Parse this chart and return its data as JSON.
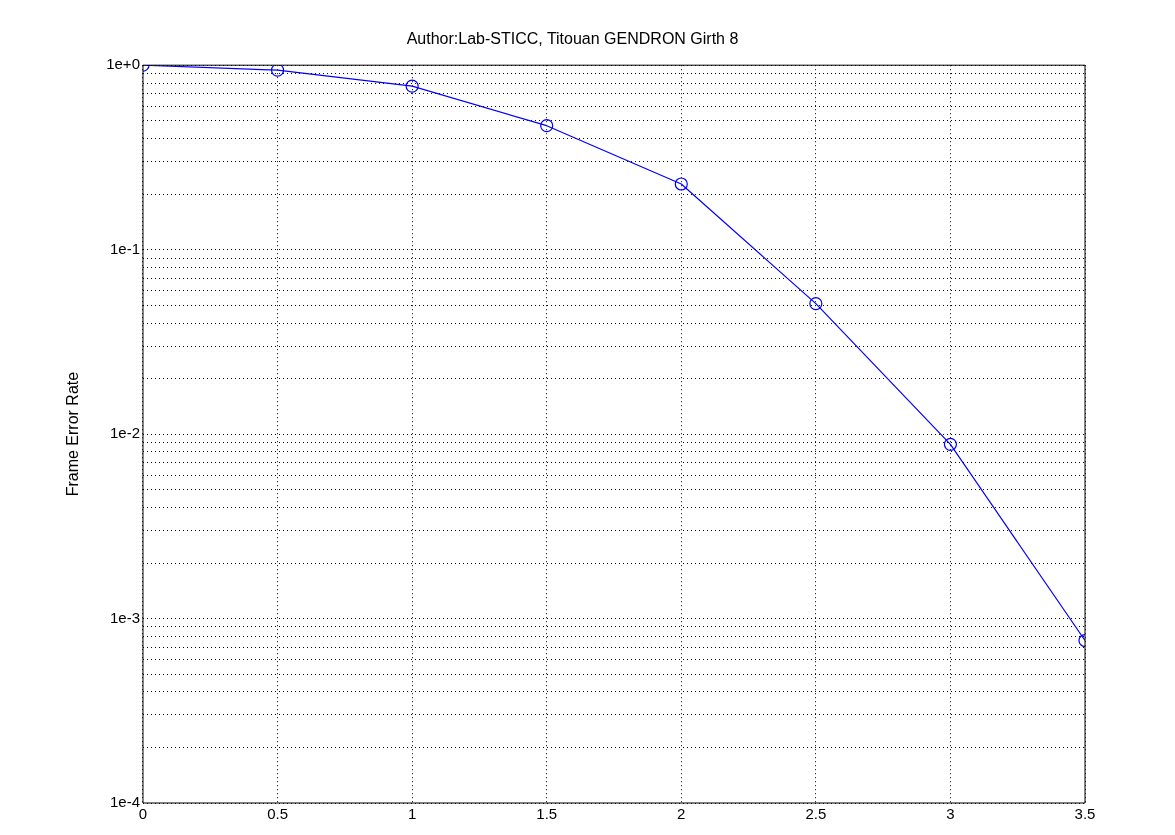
{
  "chart_data": {
    "type": "line",
    "title": "Author:Lab-STICC, Titouan GENDRON Girth 8",
    "ylabel": "Frame Error Rate",
    "x": [
      0,
      0.5,
      1,
      1.5,
      2,
      2.5,
      3,
      3.5
    ],
    "series": [
      {
        "color": "#0000ff",
        "values": [
          1.0,
          0.94,
          0.77,
          0.47,
          0.227,
          0.051,
          0.0088,
          0.00076
        ]
      }
    ],
    "xlim": [
      0,
      3.5
    ],
    "xticks": [
      0,
      0.5,
      1,
      1.5,
      2,
      2.5,
      3,
      3.5
    ],
    "ylim": [
      0.0001,
      1
    ],
    "log": "y",
    "yticks": [
      {
        "value": 0.0001,
        "label": "1e-4"
      },
      {
        "value": 0.0002,
        "label": null
      },
      {
        "value": 0.0003,
        "label": null
      },
      {
        "value": 0.0004,
        "label": null
      },
      {
        "value": 0.0005,
        "label": null
      },
      {
        "value": 0.0006,
        "label": null
      },
      {
        "value": 0.0007,
        "label": null
      },
      {
        "value": 0.0008,
        "label": null
      },
      {
        "value": 0.0009,
        "label": null
      },
      {
        "value": 0.001,
        "label": "1e-3"
      },
      {
        "value": 0.002,
        "label": null
      },
      {
        "value": 0.003,
        "label": null
      },
      {
        "value": 0.004,
        "label": null
      },
      {
        "value": 0.005,
        "label": null
      },
      {
        "value": 0.006,
        "label": null
      },
      {
        "value": 0.007,
        "label": null
      },
      {
        "value": 0.008,
        "label": null
      },
      {
        "value": 0.009,
        "label": null
      },
      {
        "value": 0.01,
        "label": "1e-2"
      },
      {
        "value": 0.02,
        "label": null
      },
      {
        "value": 0.03,
        "label": null
      },
      {
        "value": 0.04,
        "label": null
      },
      {
        "value": 0.05,
        "label": null
      },
      {
        "value": 0.06,
        "label": null
      },
      {
        "value": 0.07,
        "label": null
      },
      {
        "value": 0.08,
        "label": null
      },
      {
        "value": 0.09,
        "label": null
      },
      {
        "value": 0.1,
        "label": "1e-1"
      },
      {
        "value": 0.2,
        "label": null
      },
      {
        "value": 0.3,
        "label": null
      },
      {
        "value": 0.4,
        "label": null
      },
      {
        "value": 0.5,
        "label": null
      },
      {
        "value": 0.6,
        "label": null
      },
      {
        "value": 0.7,
        "label": null
      },
      {
        "value": 0.8,
        "label": null
      },
      {
        "value": 0.9,
        "label": null
      },
      {
        "value": 1,
        "label": "1e+0"
      }
    ],
    "grid": true,
    "marker": "circle",
    "line_style": "solid",
    "legend": false
  }
}
